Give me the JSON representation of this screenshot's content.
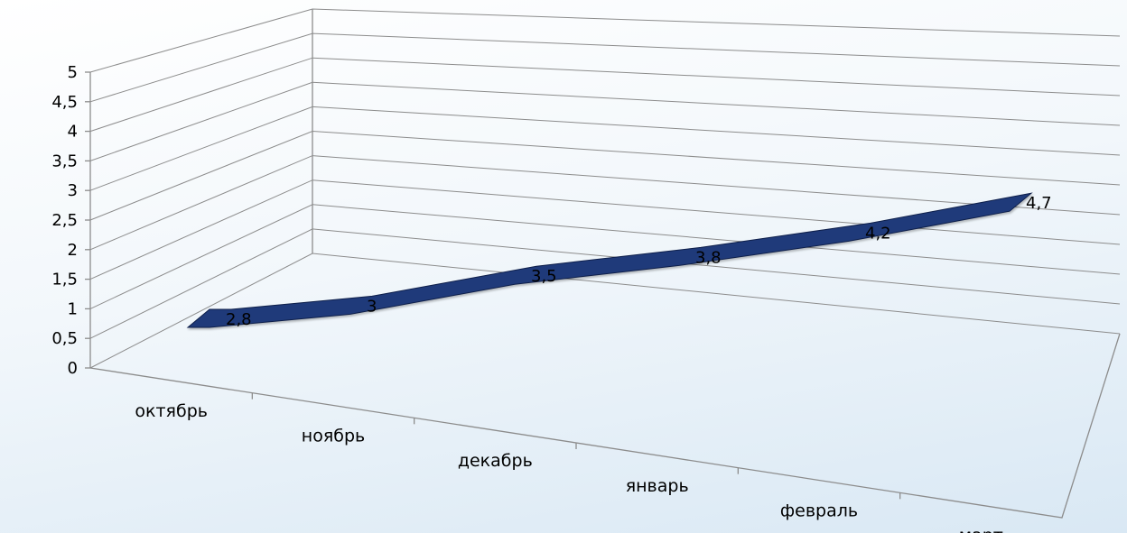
{
  "chart_data": {
    "type": "line",
    "style": "3d-ribbon",
    "categories": [
      "октябрь",
      "ноябрь",
      "декабрь",
      "январь",
      "февраль",
      "март"
    ],
    "series": [
      {
        "values": [
          2.8,
          3,
          3.5,
          3.8,
          4.2,
          4.7
        ],
        "labels": [
          "2,8",
          "3",
          "3,5",
          "3,8",
          "4,2",
          "4,7"
        ],
        "color": "#1f3a7a"
      }
    ],
    "y_ticks": [
      "0",
      "0,5",
      "1",
      "1,5",
      "2",
      "2,5",
      "3",
      "3,5",
      "4",
      "4,5",
      "5"
    ],
    "ylim": [
      0,
      5
    ],
    "grid": true,
    "legend": "none"
  }
}
